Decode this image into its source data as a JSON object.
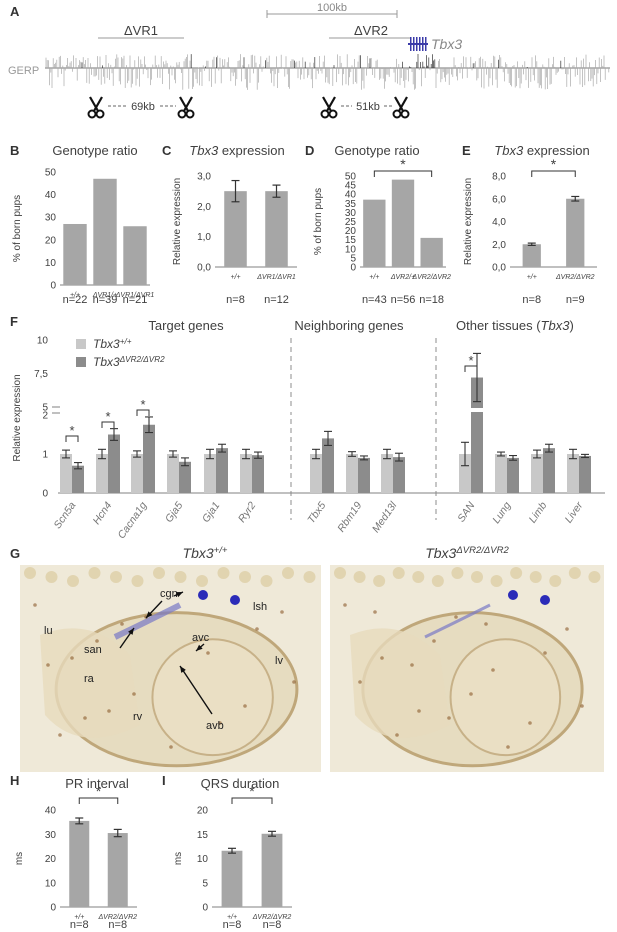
{
  "colors": {
    "bar": "#a6a6a6",
    "bar_light": "#c8c8c8",
    "bar_dark": "#8c8c8c",
    "axis": "#808080",
    "text": "#404040",
    "dash": "#8c8c8c",
    "stain": "#e6dcc0",
    "stain_dark": "#c9b48a",
    "blue": "#3a3aa8"
  },
  "panel_letters": [
    "A",
    "B",
    "C",
    "D",
    "E",
    "F",
    "G",
    "H",
    "I"
  ],
  "panel_a": {
    "scale_label": "100kb",
    "del1_label": "ΔVR1",
    "del2_label": "ΔVR2",
    "gene_label": "Tbx3",
    "gerp_label": "GERP",
    "cut1_size": "69kb",
    "cut2_size": "51kb",
    "scissor_icon": "scissors-icon"
  },
  "chart_data": [
    {
      "panel": "B",
      "type": "bar",
      "title": "Genotype ratio",
      "ylabel": "% of born pups",
      "ylim": [
        0,
        50
      ],
      "yticks": [
        "0",
        "10",
        "20",
        "30",
        "40",
        "50"
      ],
      "categories": [
        "+/+",
        "ΔVR1/+",
        "ΔVR1/ΔVR1"
      ],
      "values": [
        27,
        47,
        26
      ],
      "n_labels": [
        "n=22",
        "n=39",
        "n=21"
      ]
    },
    {
      "panel": "C",
      "type": "bar",
      "title": "Tbx3 expression",
      "ylabel": "Relative expression",
      "ylim": [
        0,
        3
      ],
      "yticks": [
        "0,0",
        "1,0",
        "2,0",
        "3,0"
      ],
      "categories": [
        "+/+",
        "ΔVR1/ΔVR1"
      ],
      "values": [
        2.5,
        2.5
      ],
      "errors": [
        0.35,
        0.2
      ],
      "n_labels": [
        "n=8",
        "n=12"
      ]
    },
    {
      "panel": "D",
      "type": "bar",
      "title": "Genotype ratio",
      "ylabel": "% of born pups",
      "ylim": [
        0,
        50
      ],
      "yticks": [
        "0",
        "5",
        "10",
        "15",
        "20",
        "25",
        "30",
        "35",
        "40",
        "45",
        "50"
      ],
      "categories": [
        "+/+",
        "ΔVR2/+",
        "ΔVR2/ΔVR2"
      ],
      "values": [
        37,
        48,
        16
      ],
      "n_labels": [
        "n=43",
        "n=56",
        "n=18"
      ],
      "significance": "*"
    },
    {
      "panel": "E",
      "type": "bar",
      "title": "Tbx3 expression",
      "ylabel": "Relative expression",
      "ylim": [
        0,
        8
      ],
      "yticks": [
        "0,0",
        "2,0",
        "4,0",
        "6,0",
        "8,0"
      ],
      "categories": [
        "+/+",
        "ΔVR2/ΔVR2"
      ],
      "values": [
        2.0,
        6.0
      ],
      "errors": [
        0.1,
        0.2
      ],
      "n_labels": [
        "n=8",
        "n=9"
      ],
      "significance": "*"
    },
    {
      "panel": "F",
      "type": "bar",
      "ylabel": "Relative expression",
      "yticks_lower": [
        "0",
        "1",
        "2"
      ],
      "yticks_upper": [
        "5",
        "7,5",
        "10"
      ],
      "group_titles": [
        "Target genes",
        "Neighboring genes",
        "Other tissues (Tbx3)"
      ],
      "categories": [
        "Scn5a",
        "Hcn4",
        "Cacna1g",
        "Gja5",
        "Gja1",
        "Ryr2",
        "Tbx5",
        "Rbm19",
        "Med13l",
        "SAN",
        "Lung",
        "Limb",
        "Liver"
      ],
      "series": [
        {
          "name": "Tbx3+/+",
          "values": [
            1.0,
            1.0,
            1.0,
            1.0,
            1.0,
            1.0,
            1.0,
            1.0,
            1.0,
            1.0,
            1.0,
            1.0,
            1.0
          ],
          "errors": [
            0.1,
            0.12,
            0.08,
            0.08,
            0.12,
            0.12,
            0.12,
            0.06,
            0.12,
            0.3,
            0.05,
            0.1,
            0.12
          ]
        },
        {
          "name": "Tbx3ΔVR2/ΔVR2",
          "values": [
            0.7,
            1.5,
            1.75,
            0.8,
            1.15,
            0.97,
            1.4,
            0.9,
            0.92,
            7.2,
            0.9,
            1.15,
            0.95
          ],
          "errors": [
            0.08,
            0.15,
            0.2,
            0.1,
            0.1,
            0.08,
            0.18,
            0.05,
            0.1,
            1.8,
            0.06,
            0.1,
            0.04
          ]
        }
      ],
      "significance_marks": [
        "*",
        "*",
        "*",
        "*"
      ]
    },
    {
      "panel": "H",
      "type": "bar",
      "title": "PR interval",
      "ylabel": "ms",
      "ylim": [
        0,
        40
      ],
      "yticks": [
        "0",
        "10",
        "20",
        "30",
        "40"
      ],
      "categories": [
        "+/+",
        "ΔVR2/ΔVR2"
      ],
      "values": [
        35.5,
        30.5
      ],
      "errors": [
        1.2,
        1.5
      ],
      "n_labels": [
        "n=8",
        "n=8"
      ],
      "significance": "*"
    },
    {
      "panel": "I",
      "type": "bar",
      "title": "QRS duration",
      "ylabel": "ms",
      "ylim": [
        0,
        20
      ],
      "yticks": [
        "0",
        "5",
        "10",
        "15",
        "20"
      ],
      "categories": [
        "+/+",
        "ΔVR2/ΔVR2"
      ],
      "values": [
        11.6,
        15.1
      ],
      "errors": [
        0.5,
        0.5
      ],
      "n_labels": [
        "n=8",
        "n=8"
      ],
      "significance": "*"
    }
  ],
  "panel_g": {
    "left_title": "Tbx3+/+",
    "right_title": "Tbx3ΔVR2/ΔVR2",
    "labels": [
      "cgn",
      "lsh",
      "lu",
      "san",
      "avc",
      "lv",
      "ra",
      "avb",
      "rv"
    ]
  }
}
